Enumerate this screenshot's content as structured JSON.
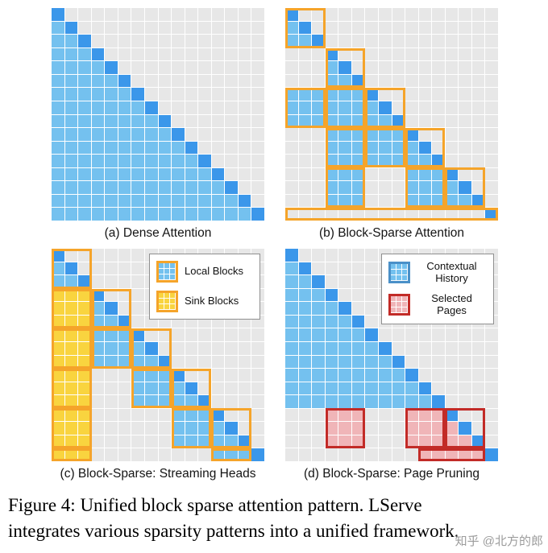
{
  "figure": {
    "caption_lines": [
      "Figure 4: Unified block sparse attention pattern.  LServe",
      "integrates various sparsity patterns into a unified framework."
    ],
    "watermark": "知乎 @北方的郎"
  },
  "colors": {
    "gray": "#e7e7e7",
    "blue": "#74c1ef",
    "dark": "#3b97ea",
    "yellow": "#f9d43f",
    "pink": "#f0b5b8",
    "orange": "#f5a42a",
    "red": "#c22b27",
    "blue_border": "#4a90c8",
    "gridline": "#ffffff"
  },
  "panels": [
    {
      "key": "a",
      "caption": "(a) Dense Attention",
      "n": 16,
      "dense_rows": [
        0,
        15
      ],
      "tri_blocks": [],
      "solid_blocks": [],
      "runs": [],
      "strips": []
    },
    {
      "key": "b",
      "caption": "(b) Block-Sparse Attention",
      "n": 16,
      "tri_blocks": [
        {
          "r": 0,
          "c": 0,
          "fill": "blue",
          "outline": "orange"
        },
        {
          "r": 1,
          "c": 1,
          "fill": "blue",
          "outline": "orange"
        },
        {
          "r": 2,
          "c": 2,
          "fill": "blue",
          "outline": "orange"
        },
        {
          "r": 3,
          "c": 3,
          "fill": "blue",
          "outline": "orange"
        },
        {
          "r": 4,
          "c": 4,
          "fill": "blue",
          "outline": "orange"
        }
      ],
      "solid_blocks": [
        {
          "r": 2,
          "c": 0,
          "fill": "blue",
          "outline": "orange"
        },
        {
          "r": 2,
          "c": 1,
          "fill": "blue",
          "outline": "orange"
        },
        {
          "r": 3,
          "c": 1,
          "fill": "blue",
          "outline": "orange"
        },
        {
          "r": 3,
          "c": 2,
          "fill": "blue",
          "outline": "orange"
        },
        {
          "r": 4,
          "c": 1,
          "fill": "blue",
          "outline": "orange"
        },
        {
          "r": 4,
          "c": 3,
          "fill": "blue",
          "outline": "orange"
        }
      ],
      "runs": [],
      "strips": [
        {
          "row": 15,
          "from": 0,
          "to": 15,
          "outline": "orange"
        }
      ]
    },
    {
      "key": "c",
      "caption": "(c) Block-Sparse: Streaming Heads",
      "n": 16,
      "tri_blocks": [
        {
          "r": 0,
          "c": 0,
          "fill": "blue",
          "outline": "orange"
        },
        {
          "r": 1,
          "c": 1,
          "fill": "blue",
          "outline": "orange"
        },
        {
          "r": 2,
          "c": 2,
          "fill": "blue",
          "outline": "orange"
        },
        {
          "r": 3,
          "c": 3,
          "fill": "blue",
          "outline": "orange"
        },
        {
          "r": 4,
          "c": 4,
          "fill": "blue",
          "outline": "orange"
        }
      ],
      "solid_blocks": [
        {
          "r": 1,
          "c": 0,
          "fill": "yellow",
          "outline": "orange"
        },
        {
          "r": 2,
          "c": 0,
          "fill": "yellow",
          "outline": "orange"
        },
        {
          "r": 3,
          "c": 0,
          "fill": "yellow",
          "outline": "orange"
        },
        {
          "r": 4,
          "c": 0,
          "fill": "yellow",
          "outline": "orange"
        },
        {
          "r": 2,
          "c": 1,
          "fill": "blue",
          "outline": "orange"
        },
        {
          "r": 3,
          "c": 2,
          "fill": "blue",
          "outline": "orange"
        },
        {
          "r": 4,
          "c": 3,
          "fill": "blue",
          "outline": "orange"
        }
      ],
      "runs": [
        {
          "row": 15,
          "from": 0,
          "to": 2,
          "color": "yellow",
          "outline": "orange"
        },
        {
          "row": 15,
          "from": 12,
          "to": 14,
          "color": "blue",
          "outline": "orange"
        }
      ],
      "strips": [],
      "legend": {
        "items": [
          {
            "label": "Local Blocks",
            "fill": "blue",
            "border": "orange"
          },
          {
            "label": "Sink Blocks",
            "fill": "yellow",
            "border": "orange"
          }
        ]
      }
    },
    {
      "key": "d",
      "caption": "(d) Block-Sparse: Page Pruning",
      "n": 16,
      "dense_rows": [
        0,
        11
      ],
      "tri_blocks": [
        {
          "r": 4,
          "c": 4,
          "fill": "pink",
          "outline": "red"
        }
      ],
      "solid_blocks": [
        {
          "r": 4,
          "c": 1,
          "fill": "pink",
          "outline": "red"
        },
        {
          "r": 4,
          "c": 3,
          "fill": "pink",
          "outline": "red"
        }
      ],
      "runs": [
        {
          "row": 15,
          "from": 10,
          "to": 14,
          "color": "pink",
          "outline": "red"
        }
      ],
      "strips": [],
      "legend": {
        "items": [
          {
            "label": "Contextual History",
            "fill": "blue",
            "border": "blue_border"
          },
          {
            "label": "Selected Pages",
            "fill": "pink",
            "border": "red"
          }
        ]
      }
    }
  ]
}
